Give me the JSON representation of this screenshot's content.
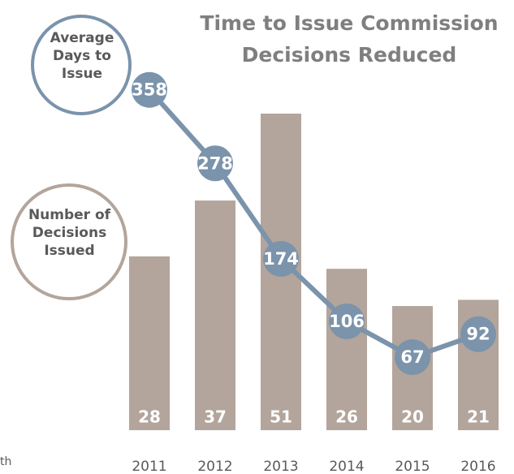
{
  "chart_data": {
    "type": "bar_line",
    "title": "Time to Issue Commission Decisions Reduced",
    "categories": [
      "2011",
      "2012",
      "2013",
      "2014",
      "2015",
      "2016"
    ],
    "series": [
      {
        "name": "Number of Decisions Issued",
        "type": "bar",
        "color": "#b3a59c",
        "values": [
          28,
          37,
          51,
          26,
          20,
          21
        ]
      },
      {
        "name": "Average Days to Issue",
        "type": "line",
        "axis": "y2",
        "color": "#7b93ab",
        "values": [
          358,
          278,
          174,
          106,
          67,
          92
        ]
      }
    ],
    "ylim": [
      0,
      68
    ],
    "y2lim": [
      -12.5,
      447
    ],
    "footnote": "th"
  }
}
